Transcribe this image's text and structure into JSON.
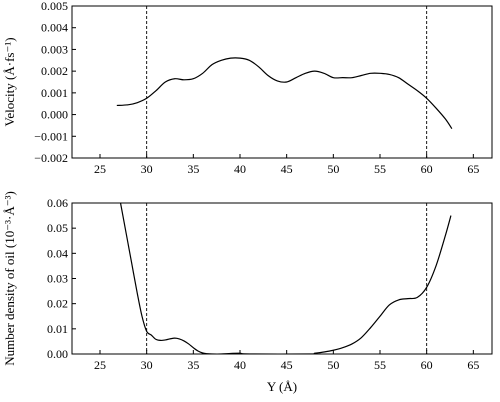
{
  "chart_data": [
    {
      "type": "line",
      "xlabel": "",
      "ylabel": "Velocity (Å·fs⁻¹)",
      "xlim": [
        22,
        67
      ],
      "ylim": [
        -0.002,
        0.005
      ],
      "x_ticks": [
        25,
        30,
        35,
        40,
        45,
        50,
        55,
        60,
        65
      ],
      "x_tick_labels": [
        "25",
        "30",
        "35",
        "40",
        "45",
        "50",
        "55",
        "60",
        "65"
      ],
      "y_ticks": [
        -0.002,
        -0.001,
        0.0,
        0.001,
        0.002,
        0.003,
        0.004,
        0.005
      ],
      "y_tick_labels": [
        "−0.002",
        "−0.001",
        "0.000",
        "0.001",
        "0.002",
        "0.003",
        "0.004",
        "0.005"
      ],
      "grid": false,
      "reference_lines_x": [
        30,
        60
      ],
      "series": [
        {
          "x": [
            26.8,
            28,
            29,
            30,
            31,
            32,
            33,
            34,
            35,
            36,
            37,
            38,
            39,
            40,
            41,
            42,
            43,
            44,
            45,
            46,
            47,
            48,
            49,
            50,
            51,
            52,
            53,
            54,
            55,
            56,
            57,
            58,
            59,
            60,
            61,
            62,
            62.7
          ],
          "y": [
            0.00042,
            0.00045,
            0.00055,
            0.00075,
            0.0011,
            0.0015,
            0.00165,
            0.0016,
            0.00165,
            0.0019,
            0.0023,
            0.0025,
            0.0026,
            0.0026,
            0.0025,
            0.0022,
            0.0018,
            0.00155,
            0.0015,
            0.0017,
            0.0019,
            0.002,
            0.0019,
            0.0017,
            0.0017,
            0.0017,
            0.0018,
            0.0019,
            0.0019,
            0.00185,
            0.0017,
            0.0014,
            0.0011,
            0.00075,
            0.0003,
            -0.0002,
            -0.00065
          ]
        }
      ]
    },
    {
      "type": "line",
      "xlabel": "Y (Å)",
      "ylabel": "Number density of oil (10⁻³·Å⁻³)",
      "xlim": [
        22,
        67
      ],
      "ylim": [
        0.0,
        0.06
      ],
      "x_ticks": [
        25,
        30,
        35,
        40,
        45,
        50,
        55,
        60,
        65
      ],
      "x_tick_labels": [
        "25",
        "30",
        "35",
        "40",
        "45",
        "50",
        "55",
        "60",
        "65"
      ],
      "y_ticks": [
        0.0,
        0.01,
        0.02,
        0.03,
        0.04,
        0.05,
        0.06
      ],
      "y_tick_labels": [
        "0.00",
        "0.01",
        "0.02",
        "0.03",
        "0.04",
        "0.05",
        "0.06"
      ],
      "grid": false,
      "reference_lines_x": [
        30,
        60
      ],
      "series": [
        {
          "x": [
            27.2,
            27.8,
            28.4,
            29,
            29.5,
            30,
            30.5,
            31,
            31.5,
            32,
            32.5,
            33,
            33.5,
            34,
            34.5,
            35,
            35.5,
            36,
            36.5,
            37,
            38,
            39,
            40,
            41,
            47.5,
            48,
            49,
            50,
            51,
            52,
            53,
            54,
            55,
            56,
            57,
            58,
            59,
            60,
            61,
            62,
            62.6
          ],
          "y": [
            0.06,
            0.048,
            0.036,
            0.024,
            0.015,
            0.009,
            0.0075,
            0.0058,
            0.0054,
            0.0056,
            0.006,
            0.0063,
            0.006,
            0.0052,
            0.004,
            0.0025,
            0.0012,
            0.0004,
            0.0001,
            0.0,
            0.0,
            0.0002,
            0.0003,
            0.0,
            0.0,
            0.0003,
            0.0008,
            0.0015,
            0.0025,
            0.004,
            0.0065,
            0.0105,
            0.015,
            0.0195,
            0.0215,
            0.022,
            0.0225,
            0.0265,
            0.035,
            0.047,
            0.055
          ]
        }
      ]
    }
  ]
}
